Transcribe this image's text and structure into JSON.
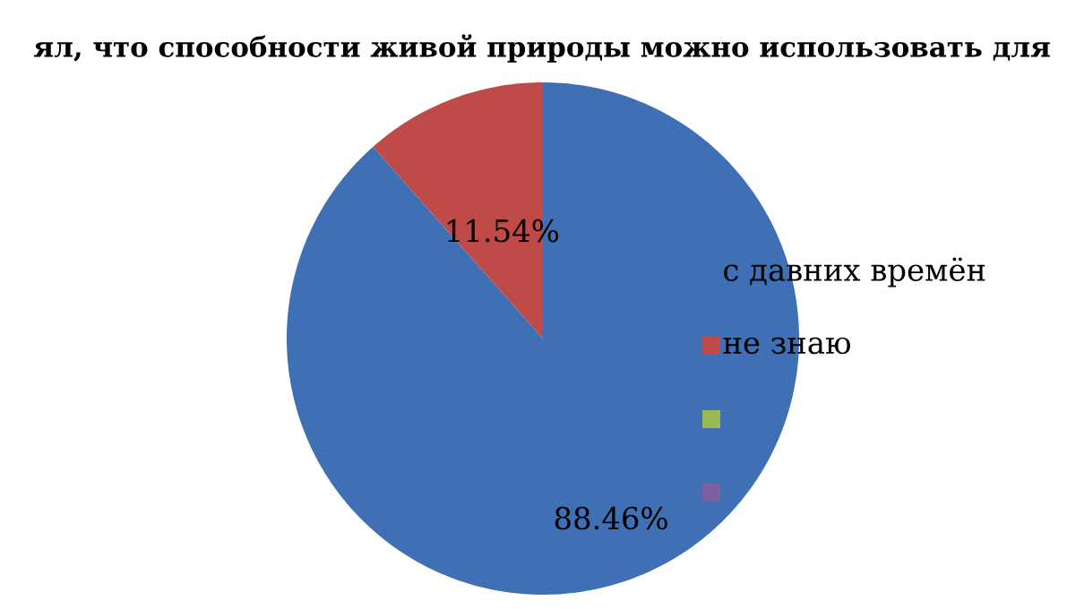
{
  "chart_data": {
    "type": "pie",
    "title": "ял, что способности живой природы можно использовать для",
    "categories": [
      "с давних времён",
      "не знаю",
      null,
      null
    ],
    "values": [
      88.46,
      11.54,
      0,
      0
    ],
    "colors": [
      "#3f6fb4",
      "#be4b48",
      "#98b954",
      "#7d60a0"
    ],
    "value_labels": [
      "88.46%",
      "11.54%",
      null,
      null
    ],
    "legend": "right"
  }
}
